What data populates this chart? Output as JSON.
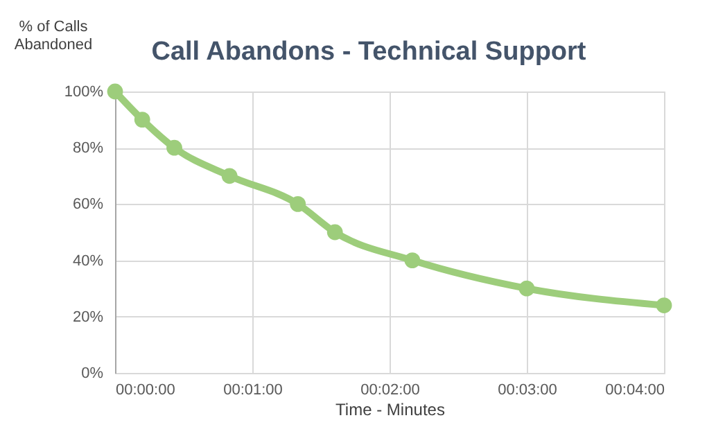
{
  "chart_data": {
    "type": "line",
    "title": "Call Abandons - Technical Support",
    "xlabel": "Time - Minutes",
    "ylabel": "% of Calls\nAbandoned",
    "x": [
      0,
      0.0033,
      0.0072,
      0.0139,
      0.0222,
      0.0267,
      0.0361,
      0.05,
      0.066667
    ],
    "series": [
      {
        "color": "#9dcd7b",
        "values": [
          100,
          90,
          80,
          70,
          60,
          50,
          40,
          30,
          24
        ]
      }
    ],
    "xlim": [
      0,
      0.066667
    ],
    "xticks": [
      {
        "value": 0,
        "label": "00:00:00"
      },
      {
        "value": 0.016667,
        "label": "00:01:00"
      },
      {
        "value": 0.033333,
        "label": "00:02:00"
      },
      {
        "value": 0.05,
        "label": "00:03:00"
      },
      {
        "value": 0.066667,
        "label": "00:04:00"
      }
    ],
    "ylim": [
      0,
      100
    ],
    "yticks": [
      {
        "value": 0,
        "label": "0%"
      },
      {
        "value": 20,
        "label": "20%"
      },
      {
        "value": 40,
        "label": "40%"
      },
      {
        "value": 60,
        "label": "60%"
      },
      {
        "value": 80,
        "label": "80%"
      },
      {
        "value": 100,
        "label": "100%"
      }
    ],
    "grid": true,
    "marker": "circle",
    "line_style": "solid"
  }
}
